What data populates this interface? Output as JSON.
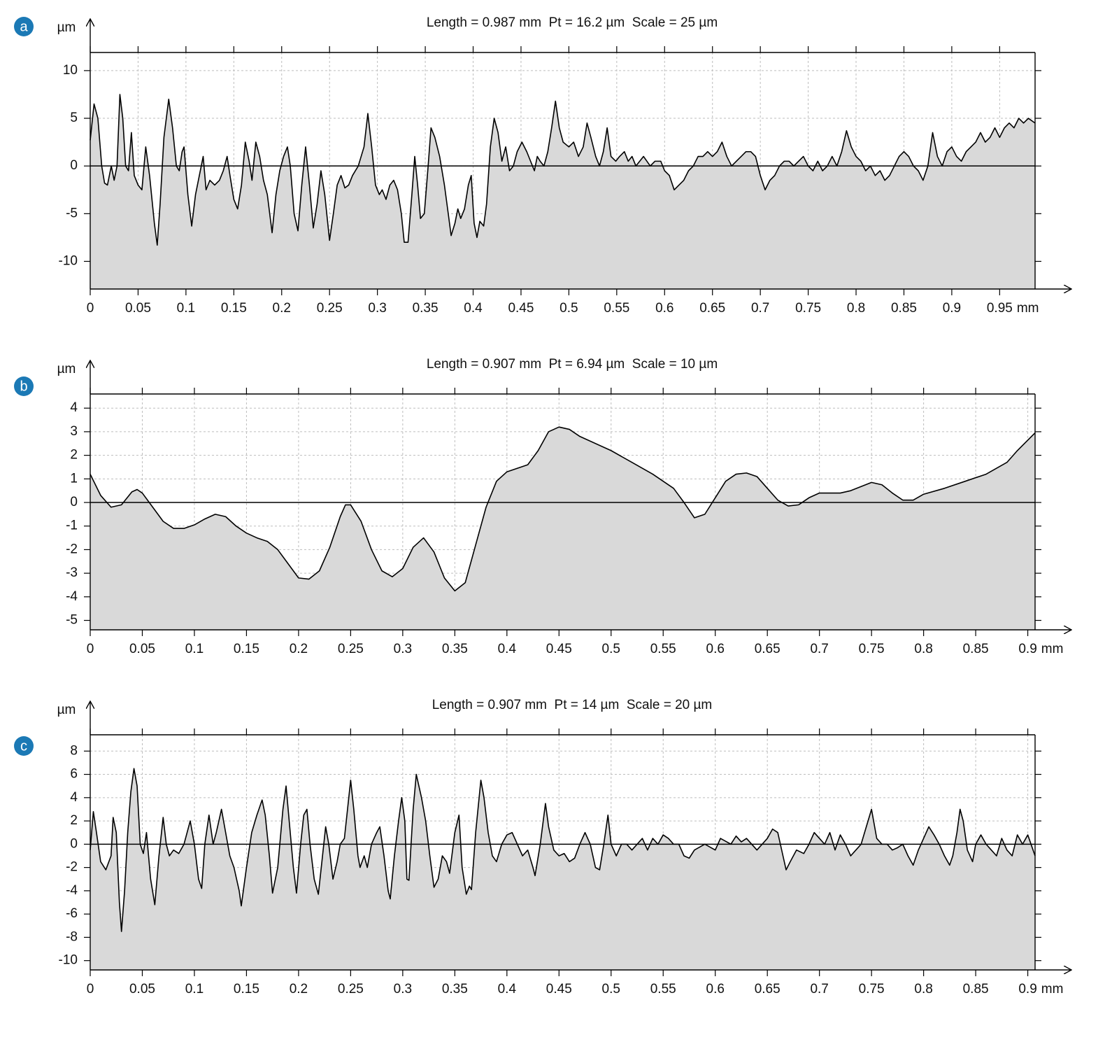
{
  "chart_data": [
    {
      "type": "area",
      "panel_label": "a",
      "title": "Length = 0.987 mm  Pt = 16.2 µm  Scale = 25 µm",
      "y_unit": "µm",
      "x_unit": "mm",
      "color": "#000000",
      "fill_color": "#d9d9d9",
      "grid": true,
      "reference_line": 0,
      "xlim": [
        0,
        0.987
      ],
      "ylim": [
        -12.9,
        11.9
      ],
      "xticks": [
        0,
        0.05,
        0.1,
        0.15,
        0.2,
        0.25,
        0.3,
        0.35,
        0.4,
        0.45,
        0.5,
        0.55,
        0.6,
        0.65,
        0.7,
        0.75,
        0.8,
        0.85,
        0.9,
        0.95
      ],
      "yticks": [
        -10,
        -5,
        0,
        5,
        10
      ],
      "x": [
        0,
        0.004,
        0.008,
        0.012,
        0.015,
        0.018,
        0.022,
        0.025,
        0.028,
        0.031,
        0.034,
        0.037,
        0.04,
        0.043,
        0.046,
        0.05,
        0.054,
        0.058,
        0.062,
        0.067,
        0.07,
        0.073,
        0.077,
        0.082,
        0.086,
        0.09,
        0.093,
        0.096,
        0.098,
        0.102,
        0.106,
        0.11,
        0.114,
        0.118,
        0.121,
        0.125,
        0.13,
        0.135,
        0.139,
        0.143,
        0.146,
        0.15,
        0.154,
        0.158,
        0.162,
        0.166,
        0.169,
        0.173,
        0.177,
        0.181,
        0.185,
        0.19,
        0.194,
        0.198,
        0.202,
        0.206,
        0.209,
        0.213,
        0.217,
        0.221,
        0.225,
        0.229,
        0.233,
        0.237,
        0.241,
        0.245,
        0.25,
        0.254,
        0.258,
        0.262,
        0.266,
        0.27,
        0.274,
        0.28,
        0.286,
        0.29,
        0.294,
        0.298,
        0.302,
        0.305,
        0.309,
        0.313,
        0.317,
        0.321,
        0.325,
        0.328,
        0.332,
        0.336,
        0.339,
        0.342,
        0.345,
        0.349,
        0.353,
        0.356,
        0.36,
        0.365,
        0.37,
        0.374,
        0.377,
        0.381,
        0.384,
        0.387,
        0.391,
        0.395,
        0.398,
        0.401,
        0.404,
        0.407,
        0.411,
        0.414,
        0.418,
        0.422,
        0.426,
        0.43,
        0.434,
        0.438,
        0.442,
        0.446,
        0.451,
        0.456,
        0.46,
        0.464,
        0.467,
        0.47,
        0.474,
        0.478,
        0.482,
        0.486,
        0.49,
        0.494,
        0.5,
        0.505,
        0.51,
        0.515,
        0.519,
        0.523,
        0.528,
        0.532,
        0.536,
        0.54,
        0.544,
        0.549,
        0.553,
        0.558,
        0.562,
        0.566,
        0.57,
        0.574,
        0.578,
        0.585,
        0.59,
        0.596,
        0.6,
        0.605,
        0.61,
        0.615,
        0.62,
        0.625,
        0.63,
        0.635,
        0.64,
        0.645,
        0.65,
        0.655,
        0.66,
        0.665,
        0.67,
        0.675,
        0.68,
        0.685,
        0.69,
        0.695,
        0.7,
        0.705,
        0.71,
        0.715,
        0.72,
        0.725,
        0.73,
        0.735,
        0.74,
        0.745,
        0.75,
        0.755,
        0.76,
        0.765,
        0.77,
        0.775,
        0.78,
        0.785,
        0.79,
        0.795,
        0.8,
        0.805,
        0.81,
        0.815,
        0.82,
        0.825,
        0.83,
        0.835,
        0.84,
        0.845,
        0.85,
        0.855,
        0.86,
        0.865,
        0.87,
        0.875,
        0.88,
        0.885,
        0.89,
        0.895,
        0.9,
        0.905,
        0.91,
        0.915,
        0.92,
        0.925,
        0.93,
        0.935,
        0.94,
        0.945,
        0.95,
        0.955,
        0.96,
        0.965,
        0.97,
        0.975,
        0.98,
        0.987
      ],
      "values": [
        2.7,
        6.5,
        5,
        0,
        -1.8,
        -2,
        0,
        -1.5,
        0,
        7.5,
        5,
        0,
        -0.5,
        3.5,
        -1,
        -2,
        -2.5,
        2,
        -1,
        -6,
        -8.3,
        -4,
        3,
        7,
        4,
        0,
        -0.5,
        1.5,
        2,
        -3,
        -6.3,
        -3,
        -1,
        1,
        -2.5,
        -1.5,
        -2,
        -1.5,
        -0.5,
        1,
        -1,
        -3.5,
        -4.5,
        -2,
        2.5,
        0.5,
        -1.5,
        2.5,
        1,
        -1.5,
        -3,
        -7,
        -3,
        -0.5,
        1,
        2,
        0,
        -5,
        -6.8,
        -2,
        2,
        -2,
        -6.5,
        -4,
        -0.5,
        -3,
        -7.8,
        -5,
        -2,
        -1,
        -2.3,
        -2,
        -1,
        0,
        2,
        5.5,
        2,
        -2,
        -3,
        -2.5,
        -3.5,
        -2,
        -1.5,
        -2.5,
        -5,
        -8,
        -8,
        -3,
        1,
        -2,
        -5.5,
        -5,
        0,
        4,
        3,
        1,
        -2,
        -5,
        -7.3,
        -6,
        -4.5,
        -5.5,
        -4.5,
        -2,
        -1,
        -6,
        -7.5,
        -5.8,
        -6.3,
        -4,
        2,
        5,
        3.5,
        0.5,
        2,
        -0.5,
        0,
        1.5,
        2.5,
        1.5,
        0.5,
        -0.5,
        1,
        0.5,
        0,
        1.5,
        4,
        6.8,
        4,
        2.5,
        2,
        2.5,
        1,
        2,
        4.5,
        3,
        1,
        0,
        1.5,
        4,
        1,
        0.5,
        1,
        1.5,
        0.5,
        1,
        0,
        0.5,
        1,
        0,
        0.5,
        0.5,
        -0.5,
        -1,
        -2.5,
        -2,
        -1.5,
        -0.5,
        0,
        1,
        1,
        1.5,
        1,
        1.5,
        2.5,
        1,
        0,
        0.5,
        1,
        1.5,
        1.5,
        1,
        -1,
        -2.5,
        -1.5,
        -1,
        0,
        0.5,
        0.5,
        0,
        0.5,
        1,
        0,
        -0.5,
        0.5,
        -0.5,
        0,
        1,
        0,
        1.5,
        3.7,
        2,
        1,
        0.5,
        -0.5,
        0,
        -1,
        -0.5,
        -1.5,
        -1,
        0,
        1,
        1.5,
        1,
        0,
        -0.5,
        -1.5,
        0,
        3.5,
        1,
        0,
        1.5,
        2,
        1,
        0.5,
        1.5,
        2,
        2.5,
        3.5,
        2.5,
        3,
        4,
        3,
        4,
        4.5,
        4,
        5,
        4.5,
        5,
        4.5
      ]
    },
    {
      "type": "area",
      "panel_label": "b",
      "title": "Length = 0.907 mm  Pt = 6.94 µm  Scale = 10 µm",
      "y_unit": "µm",
      "x_unit": "mm",
      "color": "#000000",
      "fill_color": "#d9d9d9",
      "grid": true,
      "reference_line": 0,
      "xlim": [
        0,
        0.907
      ],
      "ylim": [
        -5.4,
        4.6
      ],
      "xticks": [
        0,
        0.05,
        0.1,
        0.15,
        0.2,
        0.25,
        0.3,
        0.35,
        0.4,
        0.45,
        0.5,
        0.55,
        0.6,
        0.65,
        0.7,
        0.75,
        0.8,
        0.85,
        0.9
      ],
      "yticks": [
        -5,
        -4,
        -3,
        -2,
        -1,
        0,
        1,
        2,
        3,
        4
      ],
      "x": [
        0,
        0.01,
        0.02,
        0.03,
        0.04,
        0.045,
        0.05,
        0.06,
        0.07,
        0.08,
        0.09,
        0.1,
        0.11,
        0.12,
        0.13,
        0.14,
        0.15,
        0.16,
        0.17,
        0.18,
        0.19,
        0.2,
        0.21,
        0.22,
        0.23,
        0.24,
        0.245,
        0.25,
        0.26,
        0.27,
        0.28,
        0.29,
        0.3,
        0.31,
        0.32,
        0.33,
        0.34,
        0.35,
        0.36,
        0.37,
        0.38,
        0.39,
        0.4,
        0.42,
        0.43,
        0.44,
        0.45,
        0.46,
        0.47,
        0.5,
        0.52,
        0.54,
        0.56,
        0.57,
        0.58,
        0.59,
        0.6,
        0.61,
        0.62,
        0.63,
        0.64,
        0.65,
        0.66,
        0.67,
        0.68,
        0.69,
        0.7,
        0.72,
        0.73,
        0.75,
        0.76,
        0.77,
        0.78,
        0.79,
        0.8,
        0.82,
        0.84,
        0.86,
        0.88,
        0.89,
        0.907
      ],
      "values": [
        1.2,
        0.3,
        -0.2,
        -0.1,
        0.45,
        0.55,
        0.4,
        -0.2,
        -0.8,
        -1.1,
        -1.1,
        -0.95,
        -0.7,
        -0.5,
        -0.6,
        -1.0,
        -1.3,
        -1.5,
        -1.65,
        -2.0,
        -2.6,
        -3.2,
        -3.25,
        -2.9,
        -1.9,
        -0.6,
        -0.1,
        -0.1,
        -0.8,
        -2.0,
        -2.9,
        -3.15,
        -2.8,
        -1.9,
        -1.5,
        -2.1,
        -3.2,
        -3.75,
        -3.4,
        -1.8,
        -0.2,
        0.9,
        1.3,
        1.6,
        2.2,
        3.0,
        3.2,
        3.1,
        2.8,
        2.2,
        1.7,
        1.2,
        0.6,
        0.0,
        -0.65,
        -0.5,
        0.2,
        0.9,
        1.2,
        1.25,
        1.1,
        0.6,
        0.1,
        -0.15,
        -0.1,
        0.2,
        0.4,
        0.4,
        0.5,
        0.85,
        0.75,
        0.4,
        0.1,
        0.1,
        0.35,
        0.6,
        0.9,
        1.2,
        1.7,
        2.2,
        2.95
      ]
    },
    {
      "type": "area",
      "panel_label": "c",
      "title": "Length = 0.907 mm  Pt = 14 µm  Scale = 20 µm",
      "y_unit": "µm",
      "x_unit": "mm",
      "color": "#000000",
      "fill_color": "#d9d9d9",
      "grid": true,
      "reference_line": 0,
      "xlim": [
        0,
        0.907
      ],
      "ylim": [
        -10.8,
        9.4
      ],
      "xticks": [
        0,
        0.05,
        0.1,
        0.15,
        0.2,
        0.25,
        0.3,
        0.35,
        0.4,
        0.45,
        0.5,
        0.55,
        0.6,
        0.65,
        0.7,
        0.75,
        0.8,
        0.85,
        0.9
      ],
      "yticks": [
        -10,
        -8,
        -6,
        -4,
        -2,
        0,
        2,
        4,
        6,
        8
      ],
      "x": [
        0,
        0.003,
        0.006,
        0.01,
        0.015,
        0.02,
        0.022,
        0.025,
        0.028,
        0.03,
        0.033,
        0.036,
        0.039,
        0.042,
        0.045,
        0.048,
        0.051,
        0.054,
        0.058,
        0.062,
        0.066,
        0.07,
        0.073,
        0.076,
        0.08,
        0.085,
        0.09,
        0.096,
        0.1,
        0.104,
        0.107,
        0.11,
        0.114,
        0.118,
        0.121,
        0.126,
        0.13,
        0.134,
        0.138,
        0.143,
        0.145,
        0.15,
        0.155,
        0.16,
        0.165,
        0.168,
        0.172,
        0.175,
        0.18,
        0.185,
        0.188,
        0.19,
        0.195,
        0.198,
        0.202,
        0.205,
        0.208,
        0.211,
        0.215,
        0.219,
        0.223,
        0.226,
        0.229,
        0.233,
        0.237,
        0.24,
        0.244,
        0.247,
        0.25,
        0.253,
        0.257,
        0.259,
        0.263,
        0.266,
        0.27,
        0.275,
        0.278,
        0.282,
        0.286,
        0.288,
        0.292,
        0.296,
        0.299,
        0.302,
        0.304,
        0.306,
        0.308,
        0.31,
        0.313,
        0.318,
        0.322,
        0.326,
        0.33,
        0.334,
        0.338,
        0.342,
        0.345,
        0.35,
        0.354,
        0.357,
        0.361,
        0.364,
        0.366,
        0.37,
        0.375,
        0.378,
        0.382,
        0.386,
        0.39,
        0.395,
        0.4,
        0.405,
        0.41,
        0.415,
        0.42,
        0.425,
        0.427,
        0.432,
        0.437,
        0.44,
        0.445,
        0.45,
        0.455,
        0.46,
        0.465,
        0.47,
        0.475,
        0.48,
        0.485,
        0.489,
        0.493,
        0.497,
        0.5,
        0.505,
        0.51,
        0.515,
        0.52,
        0.525,
        0.53,
        0.535,
        0.54,
        0.545,
        0.55,
        0.555,
        0.56,
        0.565,
        0.57,
        0.575,
        0.58,
        0.59,
        0.6,
        0.605,
        0.615,
        0.62,
        0.625,
        0.63,
        0.64,
        0.645,
        0.65,
        0.655,
        0.66,
        0.665,
        0.668,
        0.672,
        0.678,
        0.685,
        0.69,
        0.695,
        0.7,
        0.705,
        0.71,
        0.715,
        0.72,
        0.725,
        0.73,
        0.735,
        0.74,
        0.745,
        0.75,
        0.755,
        0.76,
        0.765,
        0.77,
        0.775,
        0.78,
        0.785,
        0.79,
        0.795,
        0.8,
        0.805,
        0.81,
        0.815,
        0.82,
        0.825,
        0.828,
        0.832,
        0.835,
        0.838,
        0.842,
        0.847,
        0.85,
        0.855,
        0.86,
        0.865,
        0.87,
        0.875,
        0.88,
        0.885,
        0.89,
        0.895,
        0.9,
        0.907
      ],
      "values": [
        -0.5,
        2.8,
        1,
        -1.5,
        -2.2,
        -1,
        2.3,
        1,
        -5,
        -7.5,
        -4,
        1,
        4.5,
        6.5,
        5,
        0,
        -0.8,
        1,
        -3,
        -5.2,
        -1,
        2.3,
        0,
        -1,
        -0.5,
        -0.8,
        0,
        2,
        0,
        -3,
        -3.8,
        0,
        2.5,
        0,
        1,
        3,
        1,
        -1,
        -2,
        -4,
        -5.3,
        -2,
        1,
        2.5,
        3.8,
        2.5,
        -1,
        -4.2,
        -2,
        3,
        5,
        3,
        -2,
        -4.2,
        0,
        2.5,
        3,
        0,
        -3,
        -4.3,
        -1,
        1.5,
        0,
        -3,
        -1.5,
        0,
        0.5,
        3,
        5.5,
        3,
        -1,
        -2,
        -1,
        -2,
        0,
        1,
        1.5,
        -1,
        -4,
        -4.7,
        -1,
        2,
        4,
        2,
        -3,
        -3.1,
        0,
        3,
        6,
        4,
        2,
        -1,
        -3.7,
        -3,
        -1,
        -1.5,
        -2.5,
        1,
        2.5,
        -2,
        -4.3,
        -3.6,
        -3.9,
        1,
        5.5,
        4,
        1,
        -1,
        -1.5,
        0,
        0.8,
        1,
        0,
        -1,
        -0.5,
        -2,
        -2.7,
        0,
        3.5,
        1.5,
        -0.5,
        -1,
        -0.8,
        -1.5,
        -1.2,
        0,
        1,
        0,
        -2,
        -2.2,
        0,
        2.5,
        0,
        -1,
        0,
        0,
        -0.5,
        0,
        0.5,
        -0.5,
        0.5,
        0,
        0.8,
        0.5,
        0,
        0,
        -1,
        -1.2,
        -0.5,
        0,
        -0.5,
        0.5,
        0,
        0.7,
        0.2,
        0.5,
        -0.5,
        0,
        0.5,
        1.3,
        1,
        -1,
        -2.2,
        -1.5,
        -0.5,
        -0.8,
        0,
        1,
        0.5,
        0,
        1,
        -0.5,
        0.8,
        0,
        -1,
        -0.5,
        0,
        1.5,
        3,
        0.5,
        0,
        0,
        -0.5,
        -0.3,
        0,
        -1,
        -1.8,
        -0.5,
        0.5,
        1.5,
        0.8,
        0,
        -1,
        -1.8,
        -1,
        1,
        3,
        2,
        -0.5,
        -1.5,
        0,
        0.8,
        0,
        -0.5,
        -1,
        0.5,
        -0.5,
        -1,
        0.8,
        0,
        0.8,
        -1
      ]
    }
  ]
}
